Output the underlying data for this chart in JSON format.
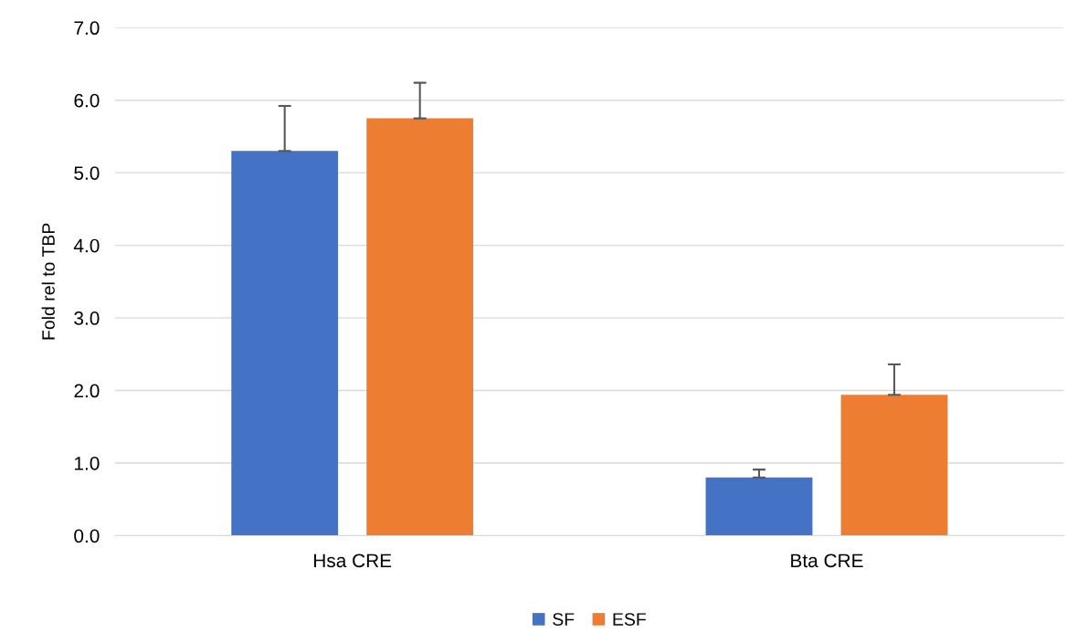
{
  "chart_data": {
    "type": "bar",
    "ylabel": "Fold rel to TBP",
    "categories": [
      "Hsa CRE",
      "Bta CRE"
    ],
    "series": [
      {
        "name": "SF",
        "color": "#4472c4",
        "values": [
          5.3,
          0.8
        ],
        "errors": [
          [
            5.3,
            5.92
          ],
          [
            0.8,
            0.91
          ]
        ]
      },
      {
        "name": "ESF",
        "color": "#ed7d31",
        "values": [
          5.75,
          1.94
        ],
        "errors": [
          [
            5.75,
            6.24
          ],
          [
            1.94,
            2.36
          ]
        ]
      }
    ],
    "ylim": [
      0,
      7
    ],
    "yticks": [
      {
        "value": 0,
        "label": "0.0"
      },
      {
        "value": 1,
        "label": "1.0"
      },
      {
        "value": 2,
        "label": "2.0"
      },
      {
        "value": 3,
        "label": "3.0"
      },
      {
        "value": 4,
        "label": "4.0"
      },
      {
        "value": 5,
        "label": "5.0"
      },
      {
        "value": 6,
        "label": "6.0"
      },
      {
        "value": 7,
        "label": "7.0"
      }
    ],
    "grid": "y",
    "legend": "bottom"
  }
}
